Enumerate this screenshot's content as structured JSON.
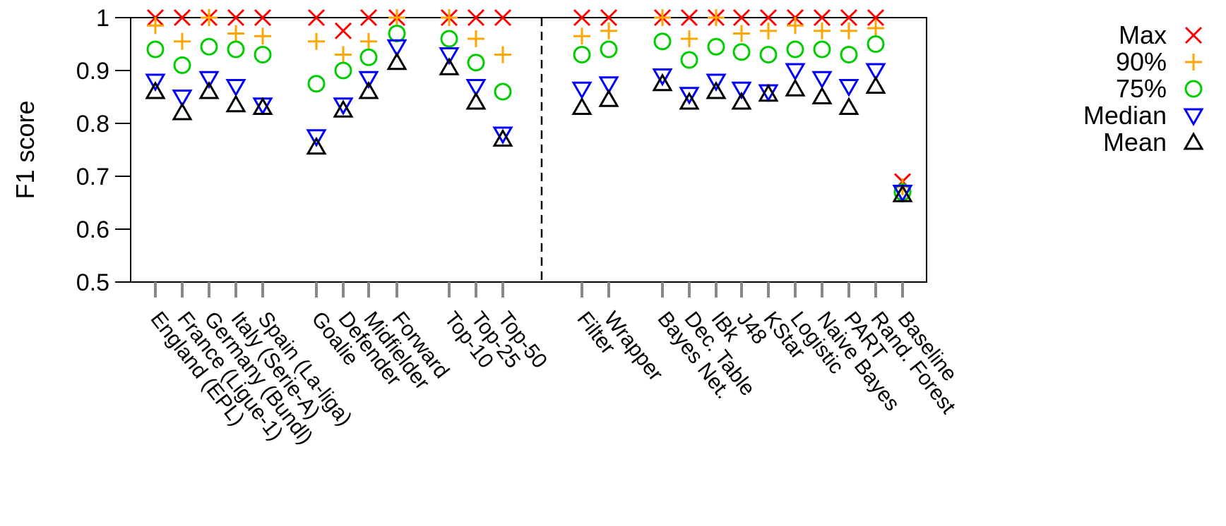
{
  "chart_data": {
    "type": "scatter",
    "ylabel": "F1 score",
    "ylim": [
      0.5,
      1.0
    ],
    "yticks": [
      "0.5",
      "0.6",
      "0.7",
      "0.8",
      "0.9",
      "1"
    ],
    "grid": false,
    "legend_position": "right",
    "separator": "dashed vertical line between Top-50 and Filter",
    "categories": [
      "England (EPL)",
      "France (Ligue-1)",
      "Germany (Bundl)",
      "Italy (Serie-A)",
      "Spain (La-liga)",
      "Goalie",
      "Defender",
      "Midfielder",
      "Forward",
      "Top-10",
      "Top-25",
      "Top-50",
      "Filter",
      "Wrapper",
      "Bayes Net.",
      "Dec. Table",
      "IBk",
      "J48",
      "KStar",
      "Logistic",
      "Naive Bayes",
      "PART",
      "Rand. Forest",
      "Baseline"
    ],
    "series": [
      {
        "name": "Max",
        "color": "#ff0000",
        "marker": "x",
        "values": [
          1.0,
          1.0,
          1.0,
          1.0,
          1.0,
          1.0,
          0.975,
          1.0,
          1.0,
          1.0,
          1.0,
          1.0,
          1.0,
          1.0,
          1.0,
          1.0,
          1.0,
          1.0,
          1.0,
          1.0,
          1.0,
          1.0,
          1.0,
          0.69
        ]
      },
      {
        "name": "90%",
        "color": "#ffa500",
        "marker": "plus",
        "values": [
          0.985,
          0.955,
          1.0,
          0.97,
          0.965,
          0.955,
          0.93,
          0.955,
          1.0,
          1.0,
          0.96,
          0.93,
          0.965,
          0.975,
          1.0,
          0.96,
          1.0,
          0.97,
          0.975,
          0.985,
          0.975,
          0.975,
          0.98,
          0.68
        ]
      },
      {
        "name": "75%",
        "color": "#00cc00",
        "marker": "circle",
        "values": [
          0.94,
          0.91,
          0.945,
          0.94,
          0.93,
          0.875,
          0.9,
          0.925,
          0.97,
          0.96,
          0.915,
          0.86,
          0.93,
          0.94,
          0.955,
          0.92,
          0.945,
          0.935,
          0.93,
          0.94,
          0.94,
          0.93,
          0.95,
          0.67
        ]
      },
      {
        "name": "Median",
        "color": "#0000ff",
        "marker": "triangle-down",
        "values": [
          0.88,
          0.85,
          0.885,
          0.87,
          0.835,
          0.775,
          0.835,
          0.885,
          0.945,
          0.93,
          0.87,
          0.78,
          0.865,
          0.875,
          0.89,
          0.855,
          0.88,
          0.865,
          0.86,
          0.9,
          0.885,
          0.87,
          0.9,
          0.67
        ]
      },
      {
        "name": "Mean",
        "color": "#000000",
        "marker": "triangle-up",
        "values": [
          0.86,
          0.82,
          0.86,
          0.835,
          0.83,
          0.755,
          0.825,
          0.86,
          0.915,
          0.905,
          0.84,
          0.77,
          0.83,
          0.845,
          0.875,
          0.84,
          0.86,
          0.84,
          0.855,
          0.865,
          0.85,
          0.83,
          0.87,
          0.665
        ]
      }
    ]
  }
}
